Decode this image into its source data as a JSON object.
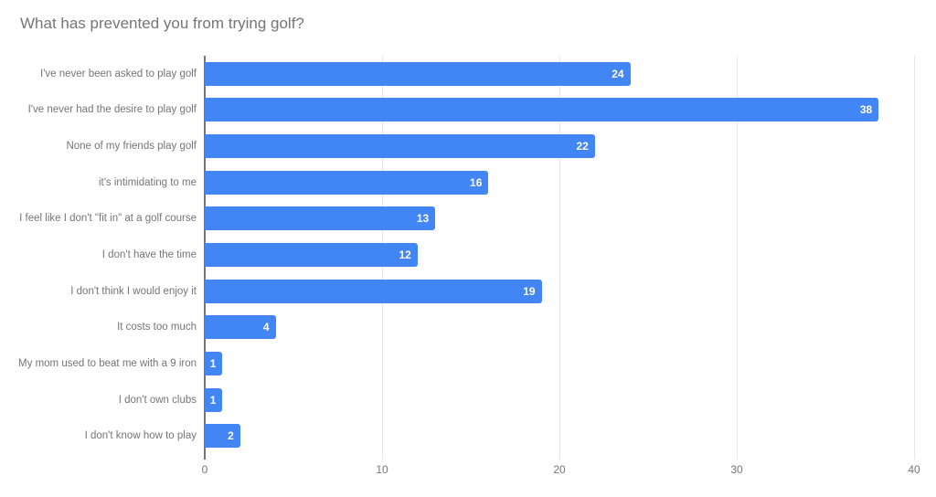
{
  "chart_data": {
    "type": "bar",
    "orientation": "horizontal",
    "title": "What has prevented you from trying golf?",
    "categories": [
      "I've never been asked to play golf",
      "I've never had the desire to play golf",
      "None of my friends play golf",
      "it's intimidating to me",
      "I feel like I don't \"fit in\" at a golf course",
      "I don't have the time",
      "I don't think I would enjoy it",
      "It costs too much",
      "My mom used to beat me with a 9 iron",
      "I don't own clubs",
      "I don't know how to play"
    ],
    "values": [
      24,
      38,
      22,
      16,
      13,
      12,
      19,
      4,
      1,
      1,
      2
    ],
    "value_labels": [
      "24",
      "38",
      "22",
      "16",
      "13",
      "12",
      "19",
      "4",
      "1",
      "1",
      "2"
    ],
    "xlabel": "",
    "ylabel": "",
    "xlim": [
      0,
      40
    ],
    "x_ticks": [
      0,
      10,
      20,
      30,
      40
    ],
    "x_tick_labels": [
      "0",
      "10",
      "20",
      "30",
      "40"
    ],
    "grid": true,
    "legend_position": "none",
    "colors": {
      "bar": "#4285f4",
      "value_label": "#ffffff",
      "category_label": "#757575",
      "tick_label": "#757575",
      "gridline": "#e6e6e6",
      "axis_line": "#757575",
      "title": "#757575",
      "background": "#ffffff"
    }
  }
}
